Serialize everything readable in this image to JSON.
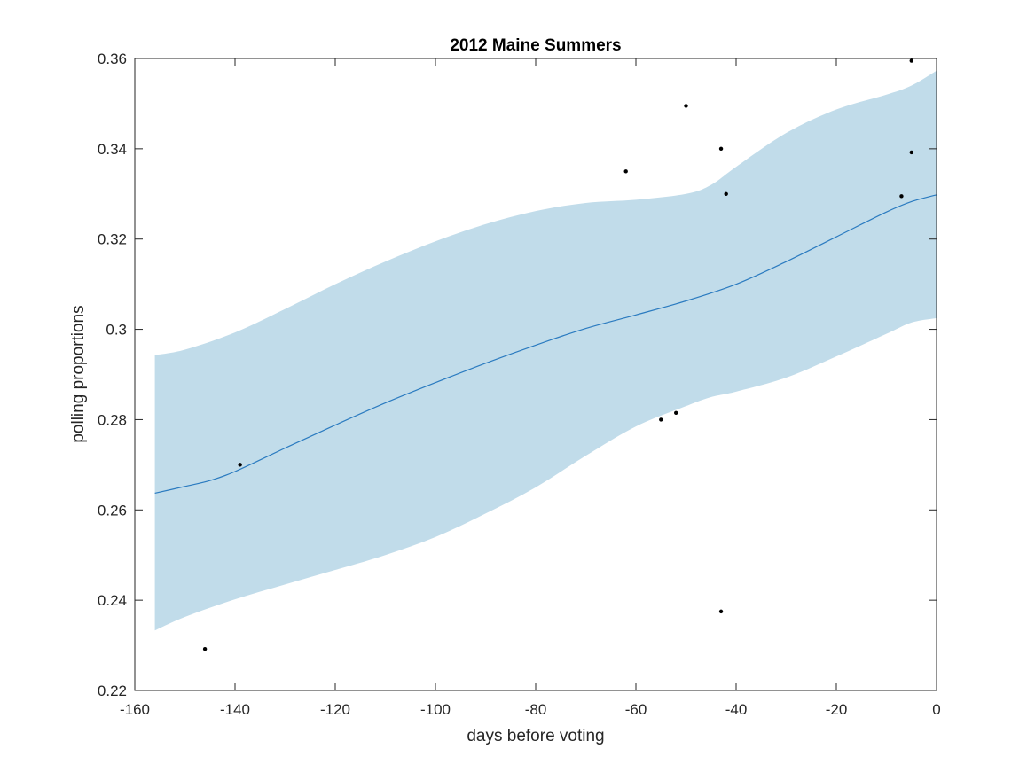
{
  "chart_data": {
    "type": "line",
    "title": "2012 Maine Summers",
    "xlabel": "days before voting",
    "ylabel": "polling proportions",
    "xlim": [
      -160,
      0
    ],
    "ylim": [
      0.22,
      0.36
    ],
    "x_ticks": [
      -160,
      -140,
      -120,
      -100,
      -80,
      -60,
      -40,
      -20,
      0
    ],
    "y_ticks": [
      0.22,
      0.24,
      0.26,
      0.28,
      0.3,
      0.32,
      0.34,
      0.36
    ],
    "x_tick_labels": [
      "-160",
      "-140",
      "-120",
      "-100",
      "-80",
      "-60",
      "-40",
      "-20",
      "0"
    ],
    "y_tick_labels": [
      "0.22",
      "0.24",
      "0.26",
      "0.28",
      "0.3",
      "0.32",
      "0.34",
      "0.36"
    ],
    "grid": false,
    "colors": {
      "band": "#c1dcea",
      "mean_line": "#2b7bc0",
      "points": "#000000",
      "axes": "#262626"
    },
    "confidence_band": {
      "x": [
        -156,
        -150,
        -140,
        -130,
        -120,
        -110,
        -100,
        -90,
        -80,
        -70,
        -60,
        -50,
        -45,
        -40,
        -30,
        -20,
        -10,
        -5,
        0
      ],
      "upper": [
        0.2943,
        0.2955,
        0.2993,
        0.3045,
        0.31,
        0.315,
        0.3195,
        0.3233,
        0.3262,
        0.328,
        0.3287,
        0.33,
        0.332,
        0.336,
        0.3435,
        0.3487,
        0.352,
        0.354,
        0.3573
      ],
      "lower": [
        0.2333,
        0.2363,
        0.2402,
        0.2435,
        0.2467,
        0.25,
        0.254,
        0.2592,
        0.265,
        0.272,
        0.2785,
        0.283,
        0.285,
        0.2862,
        0.2893,
        0.294,
        0.299,
        0.3015,
        0.3025
      ]
    },
    "series": [
      {
        "type": "line",
        "x": [
          -156,
          -150,
          -145,
          -140,
          -130,
          -120,
          -110,
          -100,
          -90,
          -80,
          -70,
          -60,
          -50,
          -40,
          -30,
          -20,
          -10,
          -5,
          0
        ],
        "y": [
          0.2637,
          0.2652,
          0.2665,
          0.2685,
          0.2737,
          0.2788,
          0.2837,
          0.2882,
          0.2925,
          0.2965,
          0.3002,
          0.3032,
          0.3063,
          0.31,
          0.315,
          0.3205,
          0.326,
          0.3283,
          0.3298
        ]
      },
      {
        "type": "scatter",
        "x": [
          -146,
          -139,
          -62,
          -55,
          -52,
          -50,
          -43,
          -42,
          -43,
          -7,
          -5,
          -5
        ],
        "y": [
          0.2292,
          0.27,
          0.335,
          0.28,
          0.2815,
          0.3495,
          0.34,
          0.33,
          0.2375,
          0.3295,
          0.3392,
          0.3595
        ]
      }
    ]
  }
}
